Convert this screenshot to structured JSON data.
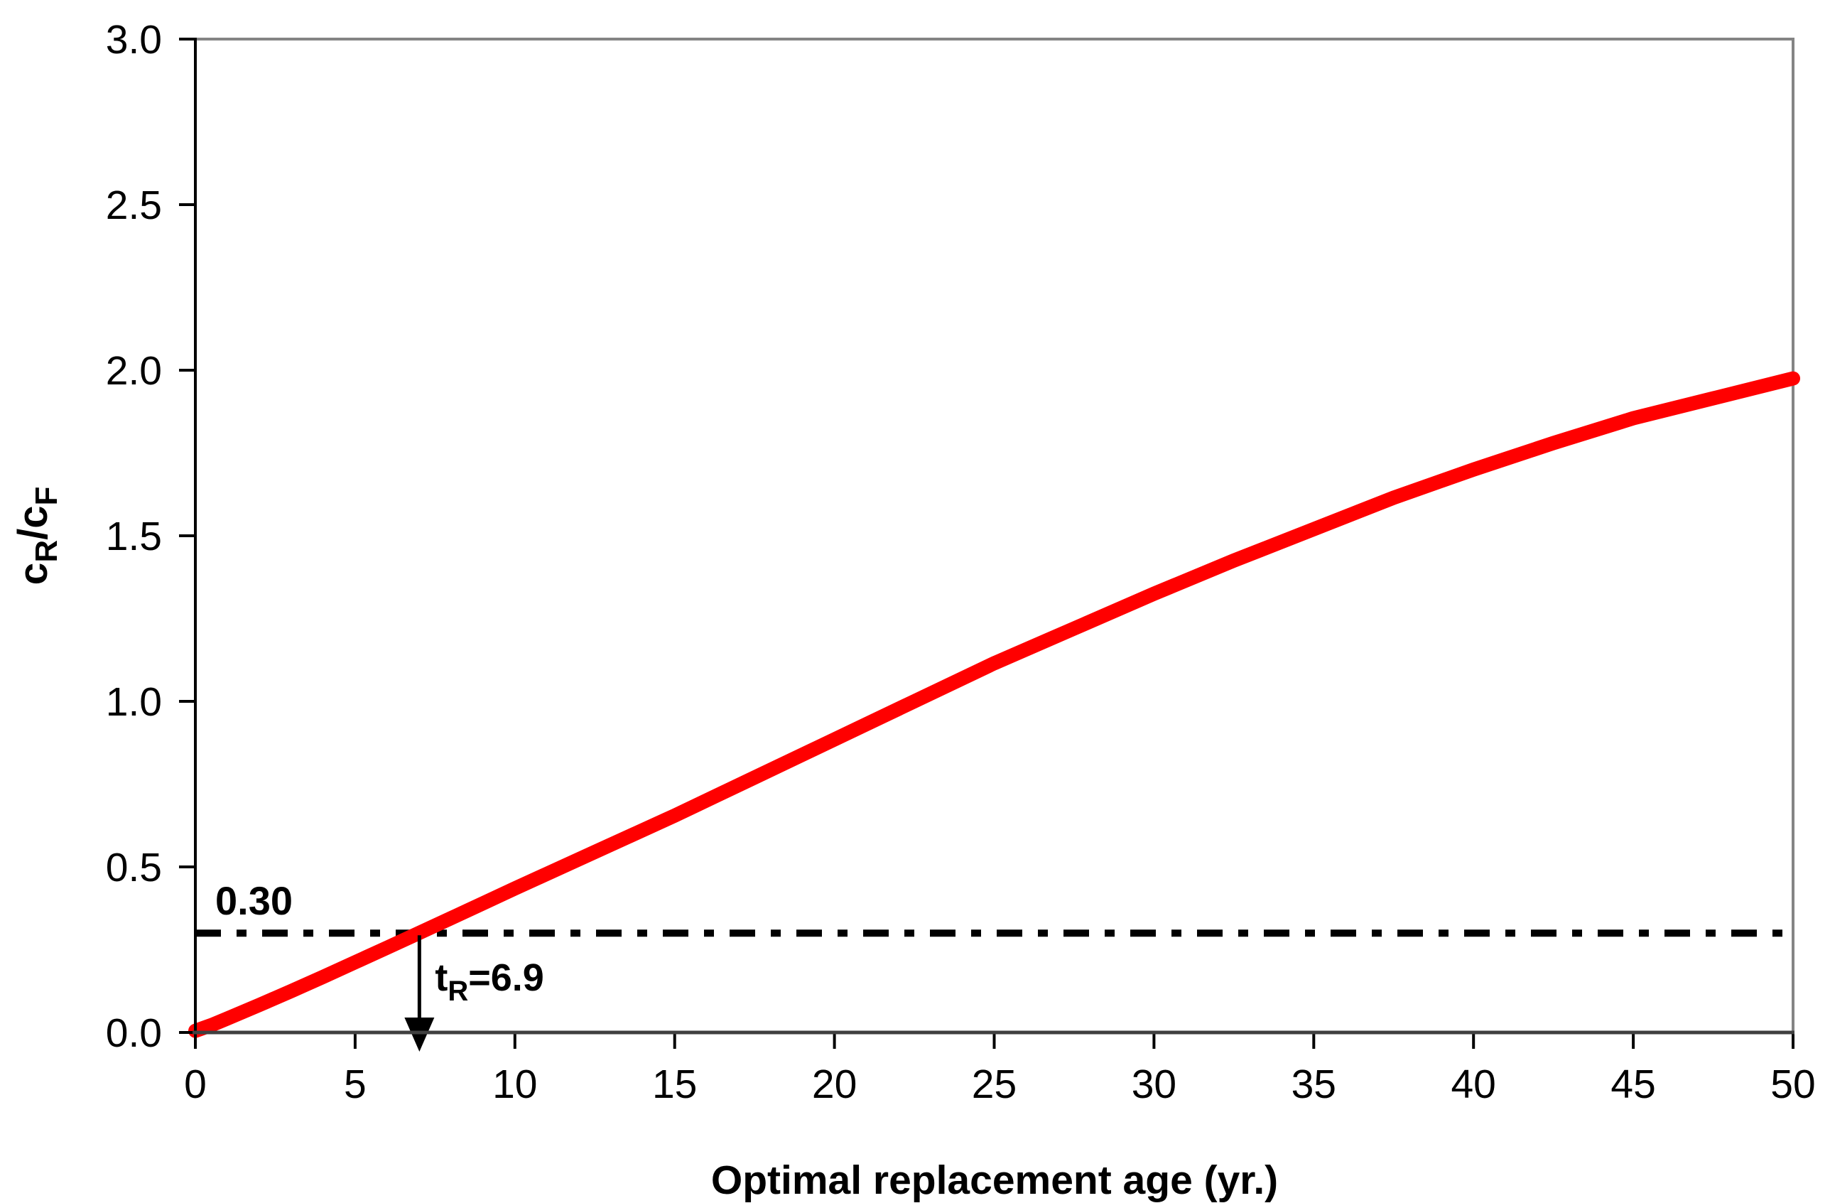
{
  "figure": {
    "background": "#ffffff",
    "plot_border_color": "#848484",
    "axis_line_color": "#000000",
    "bottom_axis_color": "#404040",
    "tick_color": "#000000"
  },
  "chart_data": {
    "type": "line",
    "title": "",
    "xlabel": "Optimal replacement age (yr.)",
    "ylabel_text": "cR/cF",
    "ylabel_parts": {
      "base1": "c",
      "sub1": "R",
      "mid": "/c",
      "sub2": "F"
    },
    "xlim": [
      0,
      50
    ],
    "ylim": [
      0.0,
      3.0
    ],
    "grid": false,
    "legend_position": "none",
    "x_ticks": [
      {
        "value": 0,
        "label": "0"
      },
      {
        "value": 5,
        "label": "5"
      },
      {
        "value": 10,
        "label": "10"
      },
      {
        "value": 15,
        "label": "15"
      },
      {
        "value": 20,
        "label": "20"
      },
      {
        "value": 25,
        "label": "25"
      },
      {
        "value": 30,
        "label": "30"
      },
      {
        "value": 35,
        "label": "35"
      },
      {
        "value": 40,
        "label": "40"
      },
      {
        "value": 45,
        "label": "45"
      },
      {
        "value": 50,
        "label": "50"
      }
    ],
    "y_ticks": [
      {
        "value": 0.0,
        "label": "0.0"
      },
      {
        "value": 0.5,
        "label": "0.5"
      },
      {
        "value": 1.0,
        "label": "1.0"
      },
      {
        "value": 1.5,
        "label": "1.5"
      },
      {
        "value": 2.0,
        "label": "2.0"
      },
      {
        "value": 2.5,
        "label": "2.5"
      },
      {
        "value": 3.0,
        "label": "3.0"
      }
    ],
    "series": [
      {
        "name": "cost-ratio-curve",
        "color": "#ff0000",
        "stroke_width": 20,
        "points": [
          [
            0,
            0.005
          ],
          [
            0.5,
            0.022
          ],
          [
            1,
            0.042
          ],
          [
            2,
            0.083
          ],
          [
            3,
            0.125
          ],
          [
            4,
            0.168
          ],
          [
            5,
            0.212
          ],
          [
            6,
            0.256
          ],
          [
            6.9,
            0.296
          ],
          [
            8,
            0.345
          ],
          [
            9,
            0.39
          ],
          [
            10,
            0.435
          ],
          [
            12.5,
            0.545
          ],
          [
            15,
            0.655
          ],
          [
            17.5,
            0.77
          ],
          [
            20,
            0.885
          ],
          [
            22.5,
            1.0
          ],
          [
            25,
            1.115
          ],
          [
            27.5,
            1.22
          ],
          [
            30,
            1.325
          ],
          [
            32.5,
            1.425
          ],
          [
            35,
            1.52
          ],
          [
            37.5,
            1.615
          ],
          [
            40,
            1.7
          ],
          [
            42.5,
            1.78
          ],
          [
            45,
            1.855
          ],
          [
            47.5,
            1.915
          ],
          [
            50,
            1.975
          ]
        ]
      }
    ],
    "reference_line": {
      "value": 0.3,
      "label": "0.30",
      "style": "dash-dot",
      "color": "#000000",
      "stroke_width": 10
    },
    "annotation": {
      "x": 6.9,
      "text_main": "t",
      "text_sub": "R",
      "text_rest": "=6.9",
      "full_text": "tR=6.9",
      "arrow": "down-to-x-axis"
    }
  }
}
